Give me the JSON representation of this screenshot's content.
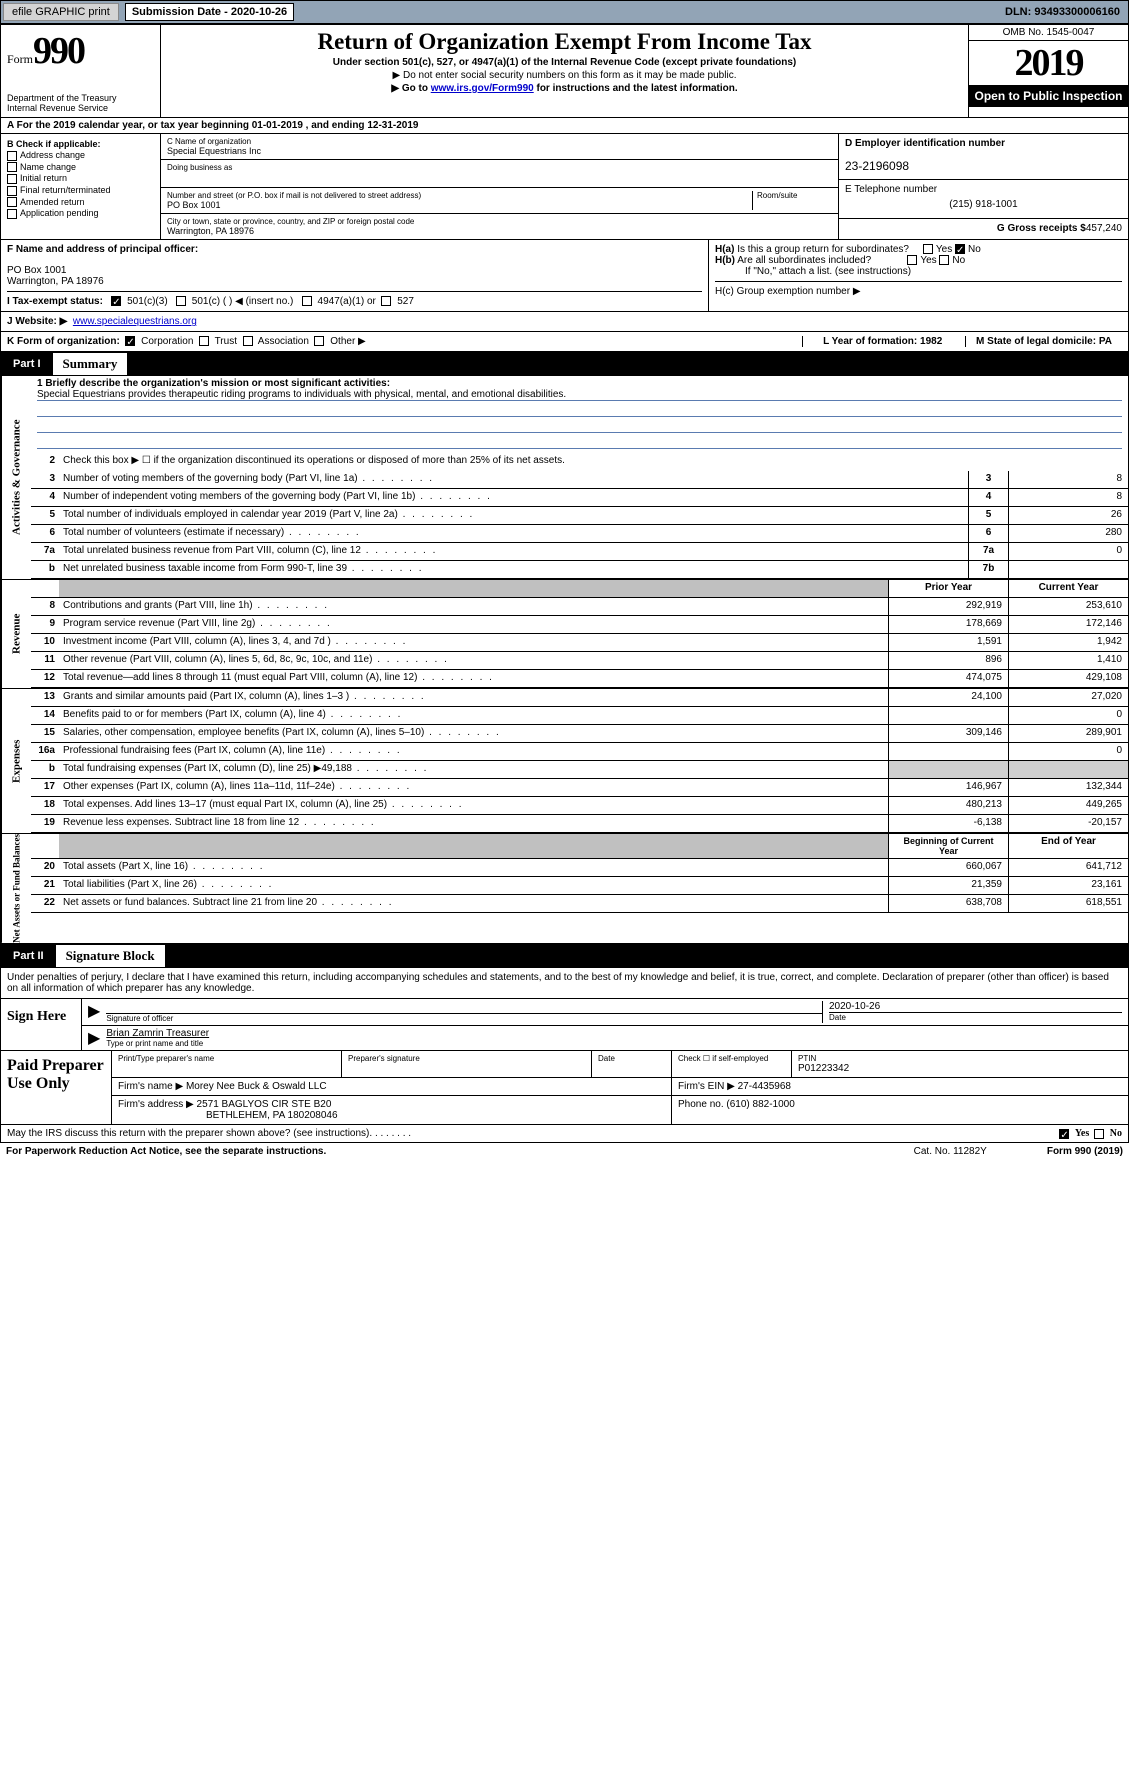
{
  "topbar": {
    "efile": "efile GRAPHIC print",
    "subdate_label": "Submission Date - 2020-10-26",
    "dln": "DLN: 93493300006160"
  },
  "header": {
    "form_word": "Form",
    "form_num": "990",
    "dept": "Department of the Treasury\nInternal Revenue Service",
    "title": "Return of Organization Exempt From Income Tax",
    "subtitle": "Under section 501(c), 527, or 4947(a)(1) of the Internal Revenue Code (except private foundations)",
    "note1": "▶ Do not enter social security numbers on this form as it may be made public.",
    "note2_pre": "▶ Go to ",
    "note2_link": "www.irs.gov/Form990",
    "note2_post": " for instructions and the latest information.",
    "omb": "OMB No. 1545-0047",
    "year": "2019",
    "inspect": "Open to Public Inspection"
  },
  "lineA": "A For the 2019 calendar year, or tax year beginning 01-01-2019   , and ending 12-31-2019",
  "boxB": {
    "label": "B Check if applicable:",
    "opts": [
      "Address change",
      "Name change",
      "Initial return",
      "Final return/terminated",
      "Amended return",
      "Application pending"
    ]
  },
  "boxC": {
    "name_lbl": "C Name of organization",
    "name": "Special Equestrians Inc",
    "dba_lbl": "Doing business as",
    "dba": "",
    "street_lbl": "Number and street (or P.O. box if mail is not delivered to street address)",
    "room_lbl": "Room/suite",
    "street": "PO Box 1001",
    "city_lbl": "City or town, state or province, country, and ZIP or foreign postal code",
    "city": "Warrington, PA  18976"
  },
  "boxD": {
    "lbl": "D Employer identification number",
    "val": "23-2196098"
  },
  "boxE": {
    "lbl": "E Telephone number",
    "val": "(215) 918-1001"
  },
  "boxG": {
    "lbl": "G Gross receipts $",
    "val": "457,240"
  },
  "boxF": {
    "lbl": "F Name and address of principal officer:",
    "addr1": "PO Box 1001",
    "addr2": "Warrington, PA  18976"
  },
  "boxH": {
    "ha": "H(a)  Is this a group return for subordinates?",
    "hb": "H(b)  Are all subordinates included?",
    "hb_note": "If \"No,\" attach a list. (see instructions)",
    "hc": "H(c)  Group exemption number ▶"
  },
  "boxI": {
    "lbl": "I Tax-exempt status:",
    "o1": "501(c)(3)",
    "o2": "501(c) (  ) ◀ (insert no.)",
    "o3": "4947(a)(1) or",
    "o4": "527"
  },
  "boxJ": {
    "lbl": "J Website: ▶",
    "val": "www.specialequestrians.org"
  },
  "boxK": {
    "lbl": "K Form of organization:",
    "opts": [
      "Corporation",
      "Trust",
      "Association",
      "Other ▶"
    ],
    "L": "L Year of formation: 1982",
    "M": "M State of legal domicile: PA"
  },
  "part1": {
    "num": "Part I",
    "title": "Summary"
  },
  "summary": {
    "line1_lbl": "1 Briefly describe the organization's mission or most significant activities:",
    "line1_val": "Special Equestrians provides therapeutic riding programs to individuals with physical, mental, and emotional disabilities.",
    "line2": "Check this box ▶ ☐ if the organization discontinued its operations or disposed of more than 25% of its net assets.",
    "rows_gov": [
      {
        "n": "3",
        "d": "Number of voting members of the governing body (Part VI, line 1a)",
        "ln": "3",
        "v": "8"
      },
      {
        "n": "4",
        "d": "Number of independent voting members of the governing body (Part VI, line 1b)",
        "ln": "4",
        "v": "8"
      },
      {
        "n": "5",
        "d": "Total number of individuals employed in calendar year 2019 (Part V, line 2a)",
        "ln": "5",
        "v": "26"
      },
      {
        "n": "6",
        "d": "Total number of volunteers (estimate if necessary)",
        "ln": "6",
        "v": "280"
      },
      {
        "n": "7a",
        "d": "Total unrelated business revenue from Part VIII, column (C), line 12",
        "ln": "7a",
        "v": "0"
      },
      {
        "n": "b",
        "d": "Net unrelated business taxable income from Form 990-T, line 39",
        "ln": "7b",
        "v": ""
      }
    ],
    "col_hdr1": "Prior Year",
    "col_hdr2": "Current Year",
    "rows_rev": [
      {
        "n": "8",
        "d": "Contributions and grants (Part VIII, line 1h)",
        "py": "292,919",
        "cy": "253,610"
      },
      {
        "n": "9",
        "d": "Program service revenue (Part VIII, line 2g)",
        "py": "178,669",
        "cy": "172,146"
      },
      {
        "n": "10",
        "d": "Investment income (Part VIII, column (A), lines 3, 4, and 7d )",
        "py": "1,591",
        "cy": "1,942"
      },
      {
        "n": "11",
        "d": "Other revenue (Part VIII, column (A), lines 5, 6d, 8c, 9c, 10c, and 11e)",
        "py": "896",
        "cy": "1,410"
      },
      {
        "n": "12",
        "d": "Total revenue—add lines 8 through 11 (must equal Part VIII, column (A), line 12)",
        "py": "474,075",
        "cy": "429,108"
      }
    ],
    "rows_exp": [
      {
        "n": "13",
        "d": "Grants and similar amounts paid (Part IX, column (A), lines 1–3 )",
        "py": "24,100",
        "cy": "27,020"
      },
      {
        "n": "14",
        "d": "Benefits paid to or for members (Part IX, column (A), line 4)",
        "py": "",
        "cy": "0"
      },
      {
        "n": "15",
        "d": "Salaries, other compensation, employee benefits (Part IX, column (A), lines 5–10)",
        "py": "309,146",
        "cy": "289,901"
      },
      {
        "n": "16a",
        "d": "Professional fundraising fees (Part IX, column (A), line 11e)",
        "py": "",
        "cy": "0"
      },
      {
        "n": "b",
        "d": "Total fundraising expenses (Part IX, column (D), line 25) ▶49,188",
        "py": "shade",
        "cy": "shade"
      },
      {
        "n": "17",
        "d": "Other expenses (Part IX, column (A), lines 11a–11d, 11f–24e)",
        "py": "146,967",
        "cy": "132,344"
      },
      {
        "n": "18",
        "d": "Total expenses. Add lines 13–17 (must equal Part IX, column (A), line 25)",
        "py": "480,213",
        "cy": "449,265"
      },
      {
        "n": "19",
        "d": "Revenue less expenses. Subtract line 18 from line 12",
        "py": "-6,138",
        "cy": "-20,157"
      }
    ],
    "col_hdr3": "Beginning of Current Year",
    "col_hdr4": "End of Year",
    "rows_net": [
      {
        "n": "20",
        "d": "Total assets (Part X, line 16)",
        "py": "660,067",
        "cy": "641,712"
      },
      {
        "n": "21",
        "d": "Total liabilities (Part X, line 26)",
        "py": "21,359",
        "cy": "23,161"
      },
      {
        "n": "22",
        "d": "Net assets or fund balances. Subtract line 21 from line 20",
        "py": "638,708",
        "cy": "618,551"
      }
    ],
    "side_gov": "Activities & Governance",
    "side_rev": "Revenue",
    "side_exp": "Expenses",
    "side_net": "Net Assets or Fund Balances"
  },
  "part2": {
    "num": "Part II",
    "title": "Signature Block"
  },
  "sig": {
    "decl": "Under penalties of perjury, I declare that I have examined this return, including accompanying schedules and statements, and to the best of my knowledge and belief, it is true, correct, and complete. Declaration of preparer (other than officer) is based on all information of which preparer has any knowledge.",
    "sign_here": "Sign Here",
    "sig_officer": "Signature of officer",
    "date_val": "2020-10-26",
    "date_lbl": "Date",
    "name_val": "Brian Zamrin Treasurer",
    "name_lbl": "Type or print name and title",
    "paid": "Paid Preparer Use Only",
    "prep_name_lbl": "Print/Type preparer's name",
    "prep_sig_lbl": "Preparer's signature",
    "prep_date_lbl": "Date",
    "self_emp": "Check ☐ if self-employed",
    "ptin_lbl": "PTIN",
    "ptin": "P01223342",
    "firm_name_lbl": "Firm's name    ▶",
    "firm_name": "Morey Nee Buck & Oswald LLC",
    "firm_ein_lbl": "Firm's EIN ▶",
    "firm_ein": "27-4435968",
    "firm_addr_lbl": "Firm's address ▶",
    "firm_addr1": "2571 BAGLYOS CIR STE B20",
    "firm_addr2": "BETHLEHEM, PA  180208046",
    "phone_lbl": "Phone no.",
    "phone": "(610) 882-1000"
  },
  "footer": {
    "discuss": "May the IRS discuss this return with the preparer shown above? (see instructions)",
    "yes": "Yes",
    "no": "No",
    "paperwork": "For Paperwork Reduction Act Notice, see the separate instructions.",
    "cat": "Cat. No. 11282Y",
    "formref": "Form 990 (2019)"
  },
  "colors": {
    "topbar_bg": "#92a4b6",
    "blue_line": "#5a7bb0",
    "link": "#0000cc"
  }
}
